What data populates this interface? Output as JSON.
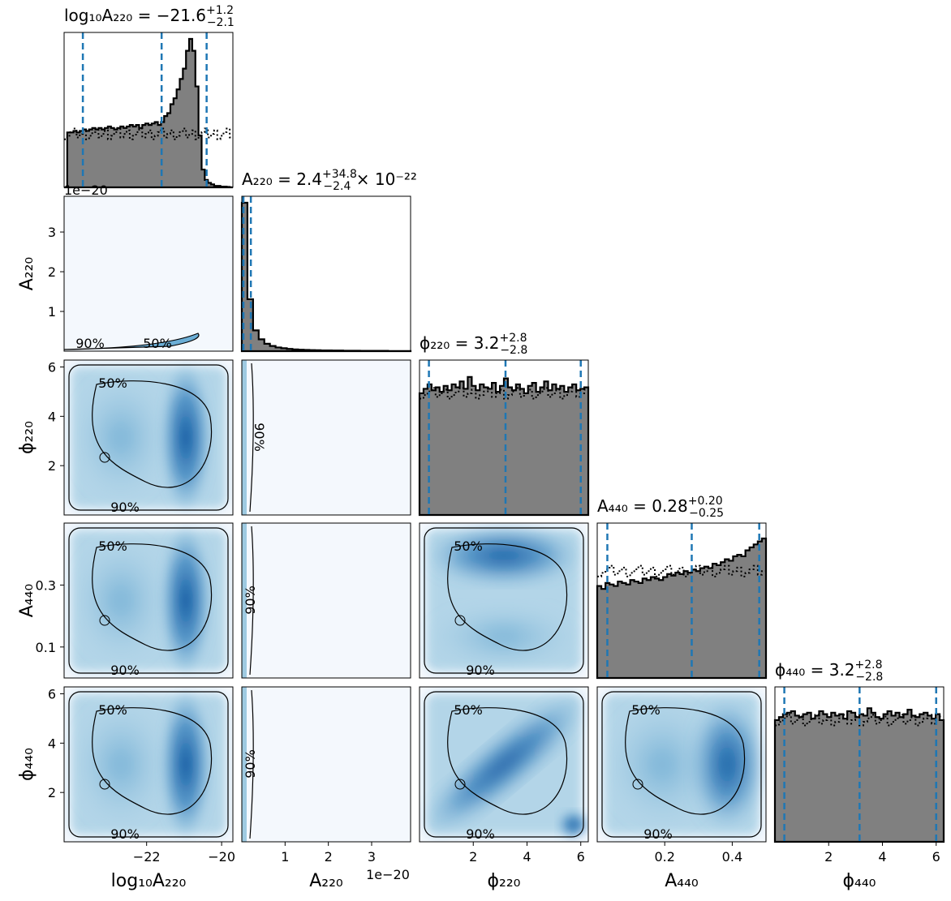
{
  "chart_data": {
    "type": "corner",
    "parameters": [
      {
        "key": "logA220",
        "label": "log₁₀A₂₂₀",
        "title": {
          "lhs": "log₁₀A₂₂₀ = −21.6",
          "sup": "+1.2",
          "sub": "−2.1",
          "suffix": ""
        },
        "range": [
          -24.2,
          -19.7
        ],
        "ticks": [
          -22,
          -20
        ],
        "tick_labels": [
          "−22",
          "−20"
        ],
        "quantiles": [
          -23.7,
          -21.6,
          -20.4
        ],
        "posterior": [
          0,
          0.37,
          0.37,
          0.38,
          0.37,
          0.38,
          0.39,
          0.38,
          0.39,
          0.4,
          0.39,
          0.4,
          0.39,
          0.4,
          0.41,
          0.4,
          0.39,
          0.4,
          0.41,
          0.4,
          0.41,
          0.42,
          0.41,
          0.42,
          0.4,
          0.42,
          0.43,
          0.42,
          0.43,
          0.44,
          0.42,
          0.44,
          0.48,
          0.5,
          0.56,
          0.6,
          0.66,
          0.73,
          0.8,
          0.92,
          1.0,
          0.92,
          0.68,
          0.35,
          0.12,
          0.05,
          0.03,
          0.02,
          0.01,
          0.01,
          0.005,
          0.005,
          0.003,
          0
        ],
        "prior_level": 0.36,
        "scale_note": ""
      },
      {
        "key": "A220",
        "label": "A₂₂₀",
        "title": {
          "lhs": "A₂₂₀ = 2.4",
          "sup": "+34.8",
          "sub": "−2.4",
          "suffix": " × 10⁻²²"
        },
        "range": [
          0,
          3.9
        ],
        "ticks": [
          1,
          2,
          3
        ],
        "tick_labels": [
          "1",
          "2",
          "3"
        ],
        "quantiles": [
          0.0,
          0.024,
          0.348
        ],
        "posterior": [
          1.0,
          0.35,
          0.14,
          0.08,
          0.05,
          0.035,
          0.025,
          0.02,
          0.015,
          0.012,
          0.01,
          0.008,
          0.007,
          0.006,
          0.005,
          0.005,
          0.004,
          0.004,
          0.003,
          0.003,
          0.003,
          0.002,
          0.002,
          0.002,
          0.002,
          0.002,
          0.001,
          0.001,
          0.001,
          0.001
        ],
        "prior_level": 0.0,
        "scale_note": "1e−20"
      },
      {
        "key": "phi220",
        "label": "ϕ₂₂₀",
        "title": {
          "lhs": "ϕ₂₂₀ = 3.2",
          "sup": "+2.8",
          "sub": "−2.8",
          "suffix": ""
        },
        "range": [
          0,
          6.28
        ],
        "ticks": [
          2,
          4,
          6
        ],
        "tick_labels": [
          "2",
          "4",
          "6"
        ],
        "quantiles": [
          0.35,
          3.2,
          6.0
        ],
        "posterior": [
          0.82,
          0.85,
          0.88,
          0.84,
          0.86,
          0.83,
          0.87,
          0.84,
          0.88,
          0.86,
          0.9,
          0.85,
          0.93,
          0.87,
          0.84,
          0.88,
          0.86,
          0.85,
          0.89,
          0.83,
          0.87,
          0.92,
          0.86,
          0.84,
          0.88,
          0.85,
          0.82,
          0.87,
          0.89,
          0.83,
          0.86,
          0.9,
          0.84,
          0.88,
          0.85,
          0.87,
          0.83,
          0.86,
          0.88,
          0.84,
          0.85,
          0.86
        ],
        "prior_level": 0.82,
        "scale_note": ""
      },
      {
        "key": "A440",
        "label": "A₄₄₀",
        "title": {
          "lhs": "A₄₄₀ = 0.28",
          "sup": "+0.20",
          "sub": "−0.25",
          "suffix": ""
        },
        "range": [
          0,
          0.5
        ],
        "ticks": [
          0.2,
          0.4
        ],
        "tick_labels": [
          "0.2",
          "0.4"
        ],
        "quantiles": [
          0.03,
          0.28,
          0.48
        ],
        "posterior": [
          0.62,
          0.6,
          0.64,
          0.63,
          0.62,
          0.65,
          0.64,
          0.63,
          0.66,
          0.65,
          0.64,
          0.67,
          0.66,
          0.68,
          0.67,
          0.66,
          0.68,
          0.7,
          0.69,
          0.71,
          0.7,
          0.72,
          0.71,
          0.73,
          0.72,
          0.74,
          0.75,
          0.74,
          0.77,
          0.76,
          0.78,
          0.8,
          0.79,
          0.82,
          0.83,
          0.82,
          0.86,
          0.88,
          0.9,
          0.92,
          0.94
        ],
        "prior_level": 0.72,
        "scale_note": ""
      },
      {
        "key": "phi440",
        "label": "ϕ₄₄₀",
        "title": {
          "lhs": "ϕ₄₄₀ = 3.2",
          "sup": "+2.8",
          "sub": "−2.8",
          "suffix": ""
        },
        "range": [
          0,
          6.28
        ],
        "ticks": [
          2,
          4,
          6
        ],
        "tick_labels": [
          "2",
          "4",
          "6"
        ],
        "quantiles": [
          0.35,
          3.15,
          6.0
        ],
        "posterior": [
          0.82,
          0.84,
          0.86,
          0.87,
          0.88,
          0.85,
          0.84,
          0.86,
          0.87,
          0.83,
          0.85,
          0.88,
          0.86,
          0.84,
          0.87,
          0.85,
          0.86,
          0.83,
          0.88,
          0.87,
          0.84,
          0.86,
          0.85,
          0.9,
          0.87,
          0.84,
          0.83,
          0.86,
          0.88,
          0.85,
          0.87,
          0.84,
          0.86,
          0.89,
          0.85,
          0.84,
          0.86,
          0.87,
          0.85,
          0.83,
          0.86,
          0.82
        ],
        "prior_level": 0.82,
        "scale_note": ""
      }
    ],
    "y_tick_labels": {
      "A220": [
        "1",
        "2",
        "3"
      ],
      "A220_values": [
        1,
        2,
        3
      ],
      "phi220": [
        "2",
        "4",
        "6"
      ],
      "phi220_values": [
        2,
        4,
        6
      ],
      "A440": [
        "0.1",
        "0.3"
      ],
      "A440_values": [
        0.1,
        0.3
      ],
      "phi440": [
        "2",
        "4",
        "6"
      ],
      "phi440_values": [
        2,
        4,
        6
      ]
    },
    "offset_label": "1e−20",
    "contour_levels": [
      "50%",
      "90%"
    ],
    "colors": {
      "hist_fill": "#808080",
      "quantile_line": "#1f77b4",
      "density_light": "#f4f8fd",
      "density_dark": "#08519c"
    }
  }
}
